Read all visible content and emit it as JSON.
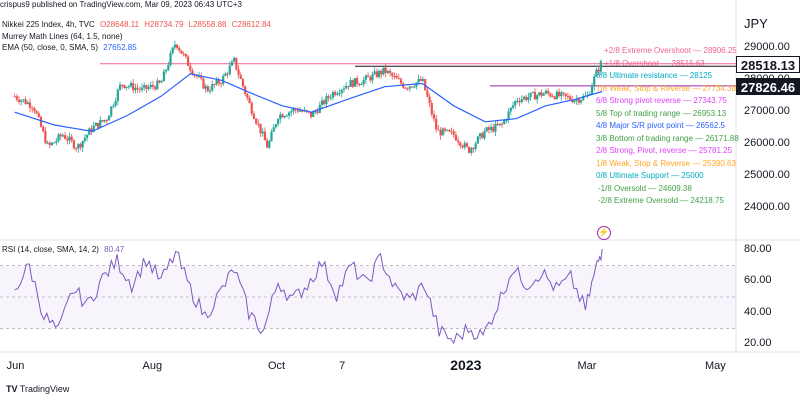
{
  "header": {
    "source": "crispus9 published on TradingView.com, Mar 09, 2023 06:43 UTC+3",
    "symbol": "Nikkei 225 Index, 4h, TVC",
    "ohlc": {
      "o": "O28648.11",
      "h": "H28734.79",
      "l": "L28558.88",
      "c": "C28612.84"
    },
    "indicator1": "Murrey Math Lines (64, 1.5, none)",
    "indicator2": "EMA (50, close, 0, SMA, 5)",
    "indicator2_value": "27652.85",
    "currency": "JPY"
  },
  "colors": {
    "up": "#26a69a",
    "down": "#ef5350",
    "ema": "#2962ff",
    "rsi": "#7e57c2"
  },
  "chart_data": [
    {
      "type": "candlestick",
      "ylim": [
        23000,
        30200
      ],
      "y_ticks": [
        "29000.00",
        "28000.00",
        "27000.00",
        "26000.00",
        "25000.00",
        "24000.00"
      ],
      "x_ticks": [
        "Jun",
        "Aug",
        "Oct",
        "7",
        "2023",
        "Mar",
        "May"
      ],
      "price_tags": [
        "28518.13",
        "27826.46"
      ],
      "close_path": [
        [
          "2022-06-01",
          27500
        ],
        [
          "2022-06-10",
          27200
        ],
        [
          "2022-06-17",
          25900
        ],
        [
          "2022-06-24",
          26300
        ],
        [
          "2022-07-01",
          25900
        ],
        [
          "2022-07-08",
          26500
        ],
        [
          "2022-07-15",
          26800
        ],
        [
          "2022-07-22",
          27900
        ],
        [
          "2022-08-01",
          27700
        ],
        [
          "2022-08-10",
          27900
        ],
        [
          "2022-08-17",
          29200
        ],
        [
          "2022-08-24",
          28400
        ],
        [
          "2022-09-01",
          27700
        ],
        [
          "2022-09-08",
          28000
        ],
        [
          "2022-09-14",
          28600
        ],
        [
          "2022-09-21",
          27300
        ],
        [
          "2022-09-30",
          25900
        ],
        [
          "2022-10-05",
          26900
        ],
        [
          "2022-10-14",
          27100
        ],
        [
          "2022-10-21",
          26900
        ],
        [
          "2022-10-31",
          27600
        ],
        [
          "2022-11-08",
          27900
        ],
        [
          "2022-11-15",
          28000
        ],
        [
          "2022-11-25",
          28300
        ],
        [
          "2022-12-05",
          27800
        ],
        [
          "2022-12-13",
          28000
        ],
        [
          "2022-12-20",
          26400
        ],
        [
          "2022-12-28",
          26300
        ],
        [
          "2023-01-04",
          25800
        ],
        [
          "2023-01-12",
          26400
        ],
        [
          "2023-01-20",
          26600
        ],
        [
          "2023-01-27",
          27400
        ],
        [
          "2023-02-03",
          27500
        ],
        [
          "2023-02-10",
          27600
        ],
        [
          "2023-02-17",
          27500
        ],
        [
          "2023-02-24",
          27400
        ],
        [
          "2023-03-02",
          27500
        ],
        [
          "2023-03-06",
          28200
        ],
        [
          "2023-03-09",
          28600
        ]
      ],
      "ema_path": [
        [
          "2022-06-01",
          27000
        ],
        [
          "2022-06-20",
          26600
        ],
        [
          "2022-07-08",
          26400
        ],
        [
          "2022-07-25",
          26900
        ],
        [
          "2022-08-10",
          27500
        ],
        [
          "2022-08-24",
          28200
        ],
        [
          "2022-09-08",
          28000
        ],
        [
          "2022-09-22",
          27600
        ],
        [
          "2022-10-07",
          27200
        ],
        [
          "2022-10-21",
          27000
        ],
        [
          "2022-11-07",
          27400
        ],
        [
          "2022-11-25",
          27800
        ],
        [
          "2022-12-13",
          27900
        ],
        [
          "2022-12-28",
          27200
        ],
        [
          "2023-01-12",
          26700
        ],
        [
          "2023-01-27",
          26800
        ],
        [
          "2023-02-10",
          27200
        ],
        [
          "2023-02-24",
          27400
        ],
        [
          "2023-03-09",
          27650
        ]
      ],
      "murrey_levels": [
        {
          "label": "+2/8 Extreme Overshoot",
          "value": "28906.25",
          "color": "#f06292"
        },
        {
          "label": "+1/8 Overshoot",
          "value": "28515.63",
          "color": "#f06292"
        },
        {
          "label": "8/8 Ultimate resistance",
          "value": "28125",
          "color": "#00acc1"
        },
        {
          "label": "7/8 Weak, Stop & Reverse",
          "value": "27734.38",
          "color": "#ffa726"
        },
        {
          "label": "6/8 Strong pivot reverse",
          "value": "27343.75",
          "color": "#e040fb"
        },
        {
          "label": "5/8 Top of trading range",
          "value": "26953.13",
          "color": "#43a047"
        },
        {
          "label": "4/8 Major S/R pivot point",
          "value": "26562.5",
          "color": "#2962ff"
        },
        {
          "label": "3/8 Bottom of trading range",
          "value": "26171.88",
          "color": "#43a047"
        },
        {
          "label": "2/8 Strong, Pivot, reverse",
          "value": "25781.25",
          "color": "#e040fb"
        },
        {
          "label": "1/8 Weak, Stop & Reverse",
          "value": "25390.63",
          "color": "#ffa726"
        },
        {
          "label": "0/8 Ultimate Support",
          "value": "25000",
          "color": "#00acc1"
        },
        {
          "label": "-1/8 Oversold",
          "value": "24609.38",
          "color": "#43a047"
        },
        {
          "label": "-2/8 Extreme Oversold",
          "value": "24218.75",
          "color": "#43a047"
        }
      ]
    },
    {
      "type": "line",
      "name": "RSI (14, close, SMA, 14, 2)",
      "label": "RSI (14, close, SMA, 14, 2)",
      "value_label": "80.47",
      "ylim": [
        15,
        85
      ],
      "y_ticks": [
        "80.00",
        "60.00",
        "40.00",
        "20.00"
      ],
      "bands": [
        70,
        50,
        30
      ],
      "points": [
        [
          "2022-06-01",
          55
        ],
        [
          "2022-06-08",
          70
        ],
        [
          "2022-06-15",
          38
        ],
        [
          "2022-06-22",
          28
        ],
        [
          "2022-06-29",
          55
        ],
        [
          "2022-07-06",
          45
        ],
        [
          "2022-07-13",
          62
        ],
        [
          "2022-07-20",
          73
        ],
        [
          "2022-07-27",
          58
        ],
        [
          "2022-08-03",
          74
        ],
        [
          "2022-08-10",
          60
        ],
        [
          "2022-08-17",
          78
        ],
        [
          "2022-08-24",
          55
        ],
        [
          "2022-08-31",
          38
        ],
        [
          "2022-09-07",
          52
        ],
        [
          "2022-09-14",
          68
        ],
        [
          "2022-09-21",
          40
        ],
        [
          "2022-09-28",
          28
        ],
        [
          "2022-10-05",
          60
        ],
        [
          "2022-10-12",
          48
        ],
        [
          "2022-10-19",
          58
        ],
        [
          "2022-10-26",
          72
        ],
        [
          "2022-11-02",
          52
        ],
        [
          "2022-11-09",
          70
        ],
        [
          "2022-11-16",
          58
        ],
        [
          "2022-11-23",
          75
        ],
        [
          "2022-11-30",
          55
        ],
        [
          "2022-12-07",
          48
        ],
        [
          "2022-12-14",
          58
        ],
        [
          "2022-12-21",
          28
        ],
        [
          "2022-12-28",
          22
        ],
        [
          "2023-01-04",
          30
        ],
        [
          "2023-01-11",
          25
        ],
        [
          "2023-01-18",
          45
        ],
        [
          "2023-01-25",
          68
        ],
        [
          "2023-02-01",
          58
        ],
        [
          "2023-02-08",
          66
        ],
        [
          "2023-02-15",
          55
        ],
        [
          "2023-02-22",
          62
        ],
        [
          "2023-03-01",
          42
        ],
        [
          "2023-03-06",
          68
        ],
        [
          "2023-03-09",
          80.47
        ]
      ]
    }
  ],
  "footer": {
    "brand": "TradingView"
  }
}
